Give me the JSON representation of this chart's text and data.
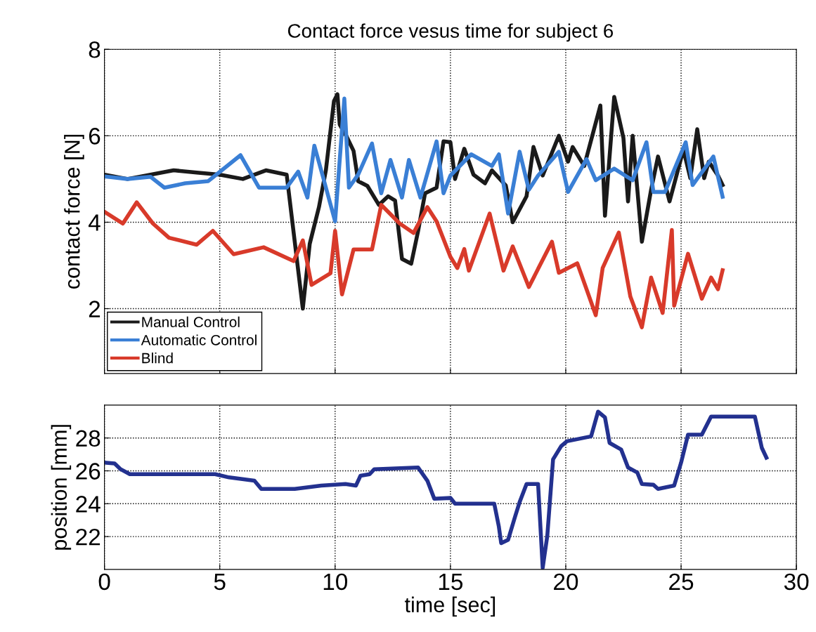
{
  "chart_data": [
    {
      "type": "line",
      "title": "Contact force vesus time for subject 6",
      "ylabel": "contact force [N]",
      "xlim": [
        0,
        30
      ],
      "xticks": [
        0,
        5,
        10,
        15,
        20,
        25,
        30
      ],
      "ylim": [
        0.5,
        8
      ],
      "yticks": [
        2,
        4,
        6,
        8
      ],
      "tick_labels": "y",
      "grid": true,
      "legend": "bottom left",
      "line_style": "solid",
      "series": [
        {
          "name": "Manual Control",
          "color": "#1a1a1a",
          "x": [
            0,
            1,
            2,
            3,
            4,
            5,
            6,
            7,
            7.9,
            8.6,
            8.9,
            9.3,
            9.6,
            9.95,
            10.1,
            10.2,
            10.5,
            10.8,
            11.0,
            11.4,
            11.9,
            12.3,
            12.6,
            12.9,
            13.3,
            13.6,
            13.9,
            14.4,
            14.7,
            15.0,
            15.2,
            15.6,
            16.0,
            16.5,
            16.8,
            17.4,
            17.7,
            18.3,
            18.6,
            19.0,
            19.7,
            20.1,
            20.3,
            20.8,
            21.5,
            21.7,
            22.1,
            22.5,
            22.7,
            22.9,
            23.3,
            23.7,
            24.0,
            24.5,
            25.1,
            25.4,
            25.7,
            26.0,
            26.2,
            26.6,
            26.8
          ],
          "values": [
            5.1,
            5.0,
            5.1,
            5.2,
            5.15,
            5.1,
            5.0,
            5.2,
            5.1,
            2.0,
            3.5,
            4.35,
            5.2,
            6.8,
            6.96,
            6.26,
            5.98,
            5.65,
            4.95,
            4.84,
            4.4,
            4.6,
            4.5,
            3.15,
            3.04,
            3.8,
            4.67,
            4.8,
            5.87,
            5.85,
            5.0,
            5.7,
            5.1,
            4.9,
            5.2,
            4.85,
            4.0,
            4.6,
            5.74,
            5.08,
            6.0,
            5.4,
            5.74,
            5.3,
            6.7,
            4.15,
            6.9,
            5.95,
            4.48,
            6.0,
            3.55,
            4.75,
            5.52,
            4.48,
            5.68,
            5.02,
            6.15,
            5.02,
            5.4,
            5.08,
            4.86
          ]
        },
        {
          "name": "Automatic Control",
          "color": "#3a7fd5",
          "x": [
            0,
            1,
            2,
            2.6,
            3.5,
            4.5,
            5.9,
            6.7,
            7.9,
            8.4,
            8.8,
            9.1,
            9.5,
            10.0,
            10.4,
            10.6,
            11.0,
            11.6,
            12.0,
            12.4,
            12.9,
            13.2,
            13.7,
            14.4,
            14.7,
            15.0,
            15.9,
            16.8,
            17.1,
            17.5,
            18.0,
            18.4,
            18.8,
            19.7,
            20.1,
            20.9,
            21.3,
            22.1,
            22.9,
            23.5,
            23.8,
            24.3,
            25.2,
            25.5,
            26.4,
            26.8
          ],
          "values": [
            5.06,
            5.0,
            5.05,
            4.8,
            4.9,
            4.95,
            5.55,
            4.8,
            4.8,
            5.17,
            4.57,
            5.77,
            5.0,
            4.02,
            6.86,
            4.8,
            5.1,
            5.82,
            4.67,
            5.44,
            4.57,
            5.44,
            4.57,
            5.87,
            4.67,
            5.08,
            5.57,
            5.3,
            5.57,
            4.2,
            5.63,
            4.75,
            5.08,
            5.63,
            4.7,
            5.46,
            4.97,
            5.24,
            4.97,
            5.85,
            4.7,
            4.7,
            5.85,
            4.86,
            5.52,
            4.59
          ]
        },
        {
          "name": "Blind",
          "color": "#d83a2a",
          "x": [
            0,
            0.8,
            1.4,
            2.1,
            2.8,
            4.0,
            4.7,
            5.6,
            6.9,
            8.2,
            8.6,
            8.98,
            9.8,
            10.0,
            10.3,
            10.8,
            11.6,
            12.0,
            12.8,
            13.4,
            14.0,
            14.4,
            15.0,
            15.3,
            15.6,
            15.8,
            16.7,
            17.3,
            17.7,
            18.4,
            19.4,
            19.7,
            20.5,
            21.3,
            21.6,
            22.3,
            22.8,
            23.3,
            23.7,
            24.2,
            24.6,
            24.7,
            25.3,
            25.9,
            26.3,
            26.6,
            26.8
          ],
          "values": [
            4.24,
            3.97,
            4.46,
            3.97,
            3.64,
            3.48,
            3.8,
            3.26,
            3.42,
            3.1,
            3.58,
            2.55,
            2.82,
            3.8,
            2.33,
            3.37,
            3.37,
            4.4,
            3.97,
            3.75,
            4.35,
            4.02,
            3.2,
            2.94,
            3.38,
            2.88,
            4.2,
            2.88,
            3.44,
            2.5,
            3.55,
            2.83,
            3.05,
            1.85,
            2.94,
            3.76,
            2.28,
            1.57,
            2.72,
            1.9,
            3.82,
            2.07,
            3.27,
            2.23,
            2.72,
            2.45,
            2.89
          ]
        }
      ]
    },
    {
      "type": "line",
      "xlabel": "time [sec]",
      "ylabel": "position [mm]",
      "xlim": [
        0,
        30
      ],
      "xticks": [
        0,
        5,
        10,
        15,
        20,
        25,
        30
      ],
      "ylim": [
        20,
        30
      ],
      "yticks": [
        22,
        24,
        26,
        28
      ],
      "grid": true,
      "line_style": "solid",
      "series": [
        {
          "color": "#23318f",
          "x": [
            0,
            0.44,
            0.7,
            1.1,
            4.8,
            5.4,
            6.5,
            6.8,
            8.25,
            9.4,
            10.45,
            10.9,
            11.1,
            11.5,
            11.7,
            13.6,
            14.0,
            14.3,
            15.0,
            15.2,
            16.9,
            17.1,
            17.2,
            17.5,
            17.8,
            18.0,
            18.3,
            18.8,
            19.0,
            19.2,
            19.45,
            19.8,
            20.05,
            21.1,
            21.4,
            21.7,
            21.9,
            22.4,
            22.7,
            23.1,
            23.3,
            23.8,
            24.0,
            24.7,
            25.0,
            25.3,
            25.9,
            26.3,
            28.2,
            28.5,
            28.7
          ],
          "values": [
            26.5,
            26.45,
            26.1,
            25.8,
            25.8,
            25.6,
            25.4,
            24.9,
            24.9,
            25.1,
            25.2,
            25.1,
            25.7,
            25.8,
            26.1,
            26.2,
            25.4,
            24.3,
            24.35,
            24.0,
            24.0,
            22.6,
            21.6,
            21.8,
            23.2,
            24.1,
            25.2,
            25.2,
            20.1,
            22.05,
            26.7,
            27.5,
            27.8,
            28.1,
            29.6,
            29.25,
            27.7,
            27.3,
            26.2,
            25.9,
            25.2,
            25.15,
            24.9,
            25.1,
            26.5,
            28.2,
            28.2,
            29.3,
            29.3,
            27.4,
            26.8
          ]
        }
      ]
    }
  ]
}
